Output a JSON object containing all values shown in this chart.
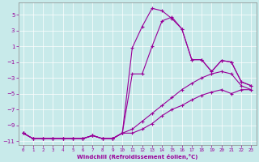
{
  "xlabel": "Windchill (Refroidissement éolien,°C)",
  "bg_color": "#c8eaea",
  "line_color": "#990099",
  "grid_color": "#ffffff",
  "xlim": [
    -0.5,
    23.5
  ],
  "ylim": [
    -11.5,
    6.5
  ],
  "xticks": [
    0,
    1,
    2,
    3,
    4,
    5,
    6,
    7,
    8,
    9,
    10,
    11,
    12,
    13,
    14,
    15,
    16,
    17,
    18,
    19,
    20,
    21,
    22,
    23
  ],
  "yticks": [
    -11,
    -9,
    -7,
    -5,
    -3,
    -1,
    1,
    3,
    5
  ],
  "curves": [
    {
      "x": [
        0,
        1,
        2,
        3,
        4,
        5,
        6,
        7,
        8,
        9,
        10,
        11,
        12,
        13,
        14,
        15,
        16,
        17,
        18,
        19,
        20,
        21,
        22,
        23
      ],
      "y": [
        -10.0,
        -10.7,
        -10.7,
        -10.7,
        -10.7,
        -10.7,
        -10.7,
        -10.3,
        -10.7,
        -10.7,
        -10.0,
        0.8,
        3.5,
        5.8,
        5.5,
        4.5,
        3.2,
        -0.7,
        -0.7,
        -2.2,
        -0.8,
        -1.0,
        -3.5,
        -4.0
      ]
    },
    {
      "x": [
        0,
        1,
        2,
        3,
        4,
        5,
        6,
        7,
        8,
        9,
        10,
        11,
        12,
        13,
        14,
        15,
        16,
        17,
        18,
        19,
        20,
        21,
        22,
        23
      ],
      "y": [
        -10.0,
        -10.7,
        -10.7,
        -10.7,
        -10.7,
        -10.7,
        -10.7,
        -10.3,
        -10.7,
        -10.7,
        -10.0,
        -2.5,
        -2.5,
        1.0,
        4.2,
        4.7,
        3.2,
        -0.7,
        -0.7,
        -2.2,
        -0.8,
        -1.0,
        -3.5,
        -4.0
      ]
    },
    {
      "x": [
        0,
        1,
        2,
        3,
        4,
        5,
        6,
        7,
        8,
        9,
        10,
        11,
        12,
        13,
        14,
        15,
        16,
        17,
        18,
        19,
        20,
        21,
        22,
        23
      ],
      "y": [
        -10.0,
        -10.7,
        -10.7,
        -10.7,
        -10.7,
        -10.7,
        -10.7,
        -10.3,
        -10.7,
        -10.7,
        -10.0,
        -9.5,
        -8.5,
        -7.5,
        -6.5,
        -5.5,
        -4.5,
        -3.7,
        -3.0,
        -2.5,
        -2.2,
        -2.5,
        -4.0,
        -4.5
      ]
    },
    {
      "x": [
        0,
        1,
        2,
        3,
        4,
        5,
        6,
        7,
        8,
        9,
        10,
        11,
        12,
        13,
        14,
        15,
        16,
        17,
        18,
        19,
        20,
        21,
        22,
        23
      ],
      "y": [
        -10.0,
        -10.7,
        -10.7,
        -10.7,
        -10.7,
        -10.7,
        -10.7,
        -10.3,
        -10.7,
        -10.7,
        -10.0,
        -10.0,
        -9.5,
        -8.8,
        -7.8,
        -7.0,
        -6.5,
        -5.8,
        -5.2,
        -4.8,
        -4.5,
        -5.0,
        -4.5,
        -4.5
      ]
    }
  ]
}
